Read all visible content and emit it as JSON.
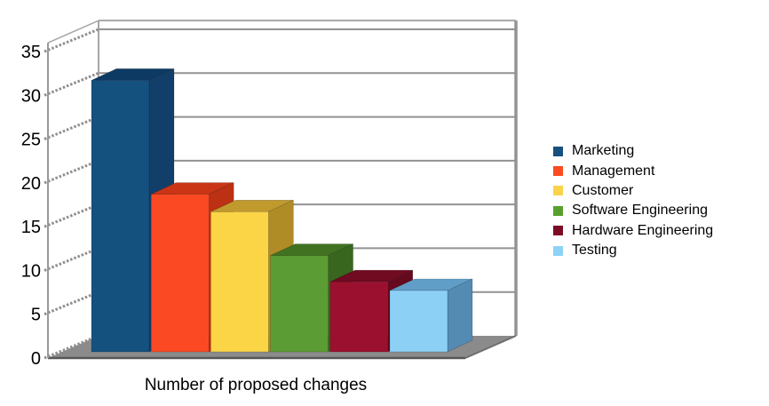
{
  "chart_data": {
    "type": "bar",
    "projection": "3d",
    "title": "",
    "xlabel": "Number of proposed changes",
    "ylabel": "",
    "ylim": [
      0,
      35
    ],
    "yticks": [
      0,
      5,
      10,
      15,
      20,
      25,
      30,
      35
    ],
    "grid": true,
    "legend_position": "right",
    "categories": [
      "Marketing",
      "Management",
      "Customer",
      "Software Engineering",
      "Hardware Engineering",
      "Testing"
    ],
    "values": [
      31,
      18,
      16,
      11,
      8,
      7
    ],
    "bars": [
      {
        "label": "Marketing",
        "value": 31,
        "legend_color": "#17507E",
        "front": "#15517F",
        "top": "#0D3A63",
        "side": "#123F69"
      },
      {
        "label": "Management",
        "value": 18,
        "legend_color": "#FB4B22",
        "front": "#FB4A23",
        "top": "#CA3516",
        "side": "#BC3013"
      },
      {
        "label": "Customer",
        "value": 16,
        "legend_color": "#FBD34A",
        "front": "#FBD546",
        "top": "#C09A2D",
        "side": "#B08C27"
      },
      {
        "label": "Software Engineering",
        "value": 11,
        "legend_color": "#57A02D",
        "front": "#5C9C34",
        "top": "#407221",
        "side": "#39661E"
      },
      {
        "label": "Hardware Engineering",
        "value": 8,
        "legend_color": "#7B0C24",
        "front": "#9C102F",
        "top": "#700B22",
        "side": "#65091E"
      },
      {
        "label": "Testing",
        "value": 7,
        "legend_color": "#8ED3F7",
        "front": "#8CD0F6",
        "top": "#619EC7",
        "side": "#538BB3"
      }
    ],
    "colors": {
      "grid": "#929292",
      "wall_border": "#A6A6A6",
      "floor": "#8B8B8B",
      "floor_front_edge": "#565656",
      "floor_side_edge": "#6E6E6E",
      "axis": "#999999",
      "tick_label": "#000000"
    }
  }
}
